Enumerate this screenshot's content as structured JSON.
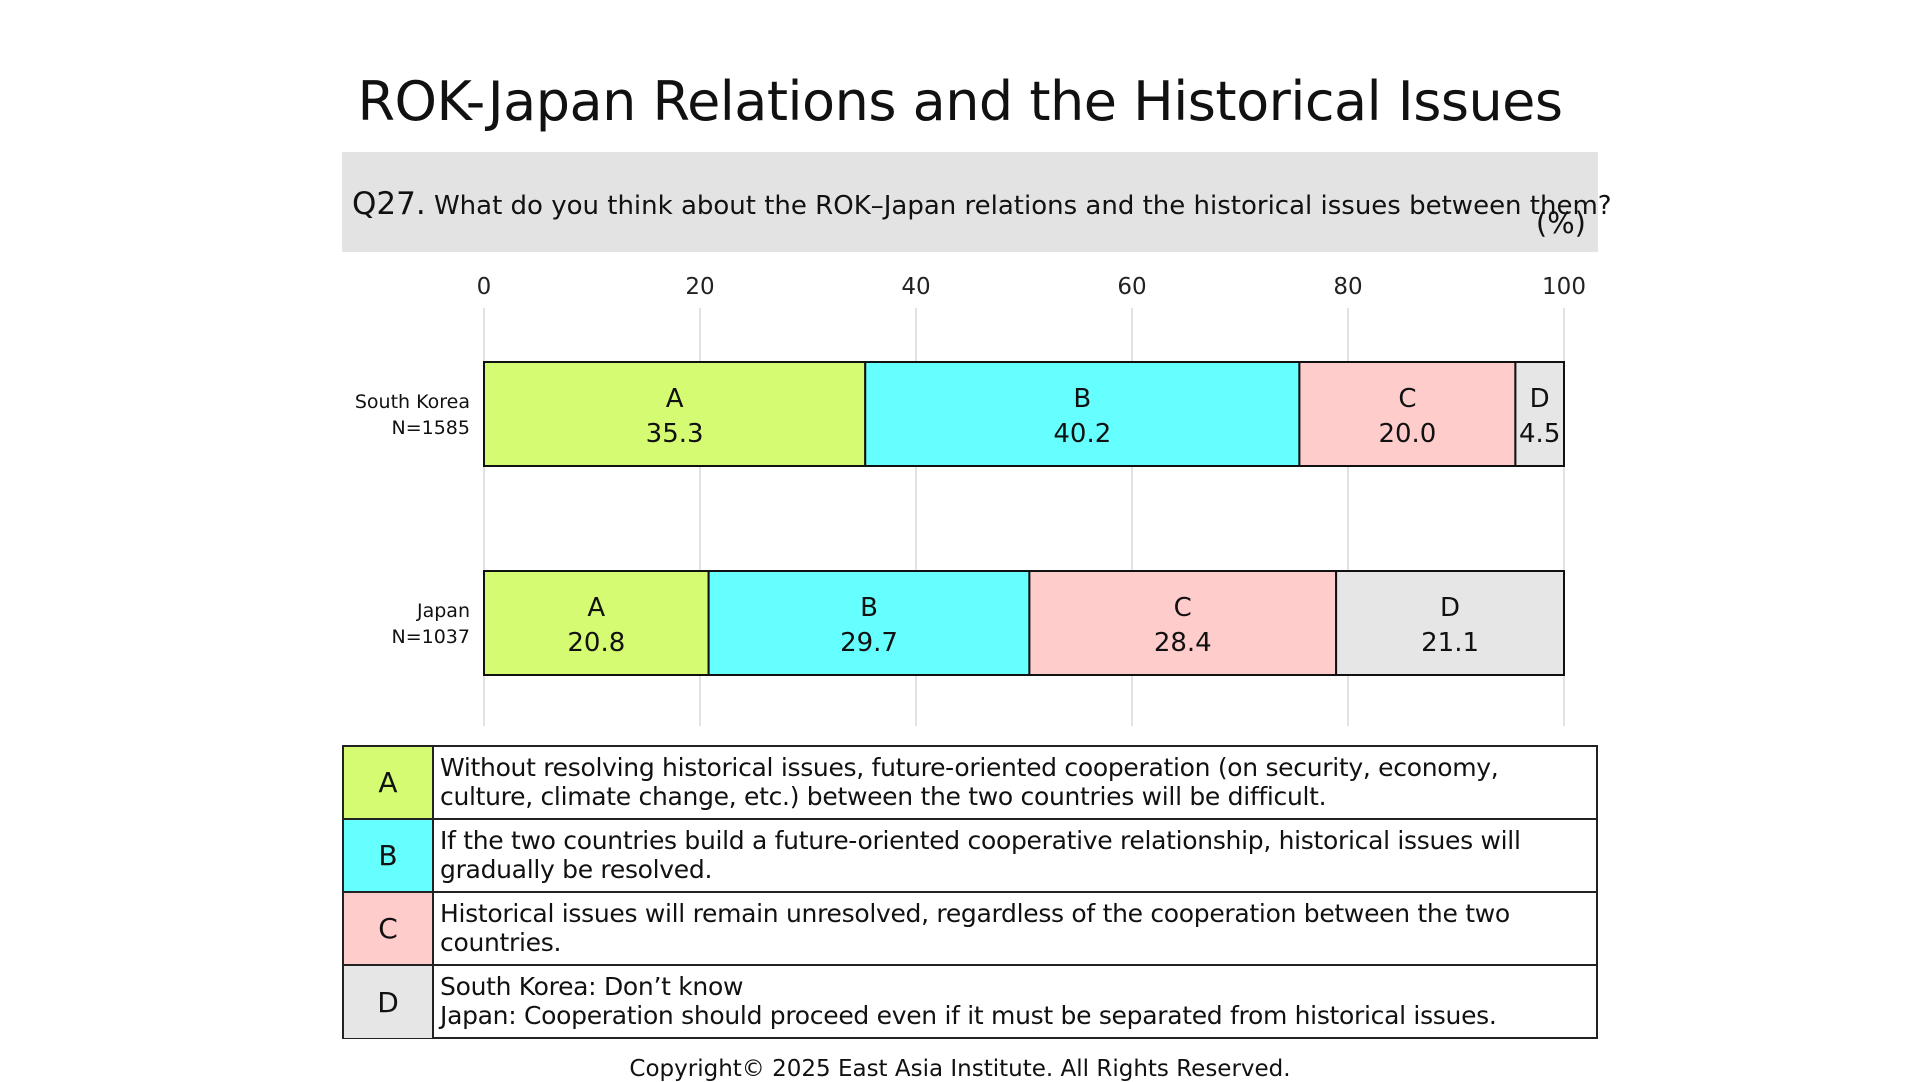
{
  "title": "ROK-Japan Relations and the Historical Issues",
  "question": {
    "number": "Q27.",
    "text": "What do you think about the ROK–Japan relations and the historical issues between them?",
    "unit": "(%)"
  },
  "colors": {
    "A": "#d5fb73",
    "B": "#66ffff",
    "C": "#ffcccc",
    "D": "#e6e6e6"
  },
  "chart_data": {
    "type": "bar",
    "orientation": "horizontal",
    "stacked": true,
    "xlim": [
      0,
      100
    ],
    "xticks": [
      "0",
      "20",
      "40",
      "60",
      "80",
      "100"
    ],
    "grid": true,
    "categories": [
      {
        "label": "South Korea",
        "n": "N=1585"
      },
      {
        "label": "Japan",
        "n": "N=1037"
      }
    ],
    "series": [
      {
        "name": "A",
        "values": [
          35.3,
          20.8
        ]
      },
      {
        "name": "B",
        "values": [
          40.2,
          29.7
        ]
      },
      {
        "name": "C",
        "values": [
          20.0,
          28.4
        ]
      },
      {
        "name": "D",
        "values": [
          4.5,
          21.1
        ]
      }
    ]
  },
  "legend": [
    {
      "key": "A",
      "text": "Without resolving historical issues, future-oriented cooperation (on security, economy,\nculture, climate change, etc.) between the two countries will be difficult."
    },
    {
      "key": "B",
      "text": "If the two countries build a future-oriented cooperative relationship, historical issues will\ngradually be resolved."
    },
    {
      "key": "C",
      "text": "Historical issues will remain unresolved, regardless of the cooperation between the two\ncountries."
    },
    {
      "key": "D",
      "text": "South Korea: Don’t know\nJapan: Cooperation should proceed even if it must be separated from historical issues."
    }
  ],
  "footer": "Copyright© 2025 East Asia Institute. All Rights Reserved."
}
